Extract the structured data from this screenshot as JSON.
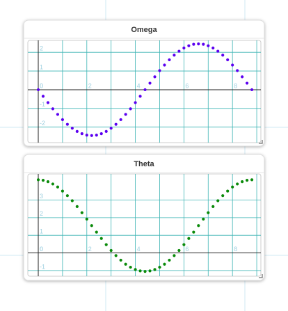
{
  "chart_data": [
    {
      "type": "scatter",
      "title": "Omega",
      "color": "#5b00f0",
      "grid": true,
      "xlim": [
        -0.43,
        9.17
      ],
      "ylim": [
        -2.83,
        2.64
      ],
      "xticks": [
        0,
        2,
        4,
        6,
        8
      ],
      "yticks": [
        -2,
        -1,
        0,
        1,
        2
      ],
      "x": [
        0,
        0.2,
        0.4,
        0.6,
        0.8,
        1.0,
        1.2,
        1.4,
        1.6,
        1.8,
        2.0,
        2.2,
        2.4,
        2.6,
        2.8,
        3.0,
        3.2,
        3.4,
        3.6,
        3.8,
        4.0,
        4.2,
        4.4,
        4.6,
        4.8,
        5.0,
        5.2,
        5.4,
        5.6,
        5.8,
        6.0,
        6.2,
        6.4,
        6.6,
        6.8,
        7.0,
        7.2,
        7.4,
        7.6,
        7.8,
        8.0,
        8.2,
        8.4,
        8.6,
        8.8
      ],
      "values": [
        0,
        -0.35,
        -0.69,
        -1.02,
        -1.32,
        -1.6,
        -1.85,
        -2.06,
        -2.23,
        -2.35,
        -2.43,
        -2.45,
        -2.43,
        -2.35,
        -2.23,
        -2.06,
        -1.85,
        -1.6,
        -1.32,
        -1.02,
        -0.69,
        -0.35,
        0,
        0.35,
        0.69,
        1.02,
        1.32,
        1.6,
        1.85,
        2.06,
        2.23,
        2.35,
        2.43,
        2.45,
        2.43,
        2.35,
        2.23,
        2.06,
        1.85,
        1.6,
        1.32,
        1.02,
        0.69,
        0.35,
        0
      ]
    },
    {
      "type": "scatter",
      "title": "Theta",
      "color": "#0a8a0a",
      "grid": true,
      "xlim": [
        -0.43,
        9.17
      ],
      "ylim": [
        -1.32,
        4.48
      ],
      "xticks": [
        0,
        2,
        4,
        6,
        8
      ],
      "yticks": [
        -1,
        0,
        1,
        2,
        3
      ],
      "x": [
        0,
        0.2,
        0.4,
        0.6,
        0.8,
        1.0,
        1.2,
        1.4,
        1.6,
        1.8,
        2.0,
        2.2,
        2.4,
        2.6,
        2.8,
        3.0,
        3.2,
        3.4,
        3.6,
        3.8,
        4.0,
        4.2,
        4.4,
        4.6,
        4.8,
        5.0,
        5.2,
        5.4,
        5.6,
        5.8,
        6.0,
        6.2,
        6.4,
        6.6,
        6.8,
        7.0,
        7.2,
        7.4,
        7.6,
        7.8,
        8.0,
        8.2,
        8.4,
        8.6,
        8.8
      ],
      "values": [
        4.15,
        4.12,
        4.04,
        3.91,
        3.74,
        3.51,
        3.25,
        2.96,
        2.63,
        2.28,
        1.92,
        1.55,
        1.18,
        0.82,
        0.47,
        0.14,
        -0.15,
        -0.41,
        -0.64,
        -0.81,
        -0.94,
        -1.02,
        -1.05,
        -1.02,
        -0.94,
        -0.81,
        -0.64,
        -0.41,
        -0.15,
        0.14,
        0.47,
        0.82,
        1.18,
        1.55,
        1.92,
        2.28,
        2.63,
        2.96,
        3.25,
        3.51,
        3.74,
        3.91,
        4.04,
        4.12,
        4.15
      ]
    }
  ]
}
